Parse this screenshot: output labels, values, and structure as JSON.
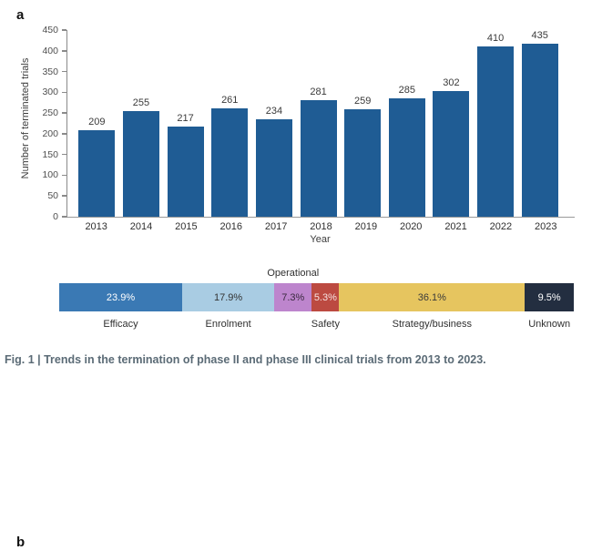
{
  "figure": {
    "caption": "Fig. 1 | Trends in the termination of phase II and phase III clinical trials from 2013 to 2023."
  },
  "panel_a": {
    "label": "a"
  },
  "panel_b": {
    "label": "b"
  },
  "colors": {
    "bar_blue": "#1f5c94",
    "axis_gray": "#8a8a8a",
    "caption_gray_blue": "#5b6b76"
  },
  "chart_data": [
    {
      "type": "bar",
      "categories": [
        "2013",
        "2014",
        "2015",
        "2016",
        "2017",
        "2018",
        "2019",
        "2020",
        "2021",
        "2022",
        "2023"
      ],
      "values": [
        209,
        255,
        217,
        261,
        234,
        281,
        259,
        285,
        302,
        410,
        435
      ],
      "title": "",
      "xlabel": "Year",
      "ylabel": "Number of terminated trials",
      "ylim": [
        0,
        450
      ],
      "yticks": [
        0,
        50,
        100,
        150,
        200,
        250,
        300,
        350,
        400,
        450
      ],
      "grid": false,
      "bar_color": "#1f5c94"
    },
    {
      "type": "bar",
      "subtype": "horizontal-stacked-percentage",
      "title": "",
      "segments": [
        {
          "label": "Efficacy",
          "value": 23.9,
          "display": "23.9%",
          "color": "#3a79b4",
          "text_color": "#ffffff",
          "label_position": "below"
        },
        {
          "label": "Enrolment",
          "value": 17.9,
          "display": "17.9%",
          "color": "#a9cce3",
          "text_color": "#333333",
          "label_position": "below"
        },
        {
          "label": "Operational",
          "value": 7.3,
          "display": "7.3%",
          "color": "#bd85cd",
          "text_color": "#3a2a3f",
          "label_position": "above"
        },
        {
          "label": "Safety",
          "value": 5.3,
          "display": "5.3%",
          "color": "#bc4a41",
          "text_color": "#f6e3e2",
          "label_position": "below"
        },
        {
          "label": "Strategy/business",
          "value": 36.1,
          "display": "36.1%",
          "color": "#e6c55f",
          "text_color": "#3a3a3a",
          "label_position": "below"
        },
        {
          "label": "Unknown",
          "value": 9.5,
          "display": "9.5%",
          "color": "#232e40",
          "text_color": "#ffffff",
          "label_position": "below"
        }
      ]
    }
  ]
}
